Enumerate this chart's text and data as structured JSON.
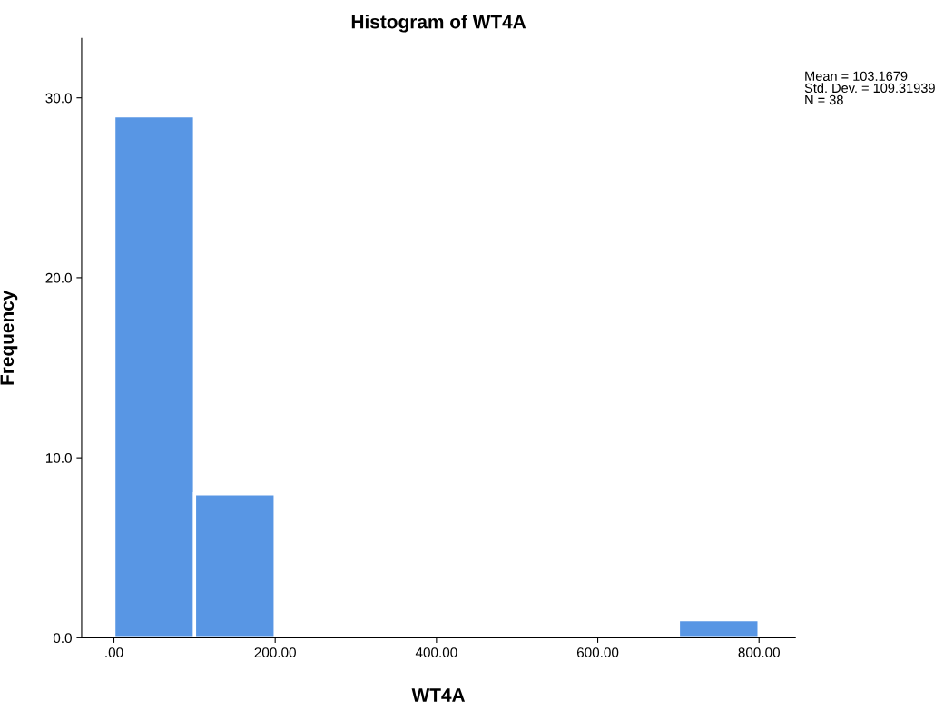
{
  "chart_data": {
    "type": "histogram",
    "title": "Histogram of WT4A",
    "xlabel": "WT4A",
    "ylabel": "Frequency",
    "bins": [
      0,
      100,
      200,
      300,
      400,
      500,
      600,
      700,
      800
    ],
    "values": [
      29,
      8,
      0,
      0,
      0,
      0,
      0,
      1
    ],
    "color": "#5896e4",
    "xlim": [
      -40,
      845
    ],
    "ylim": [
      0,
      33.3
    ],
    "xticks": [
      {
        "value": 0,
        "label": ".00"
      },
      {
        "value": 200,
        "label": "200.00"
      },
      {
        "value": 400,
        "label": "400.00"
      },
      {
        "value": 600,
        "label": "600.00"
      },
      {
        "value": 800,
        "label": "800.00"
      }
    ],
    "yticks": [
      {
        "value": 0,
        "label": "0.0"
      },
      {
        "value": 10,
        "label": "10.0"
      },
      {
        "value": 20,
        "label": "20.0"
      },
      {
        "value": 30,
        "label": "30.0"
      }
    ],
    "grid": false,
    "annotations": [
      "Mean = 103.1679\nStd. Dev. = 109.31939\nN = 38"
    ]
  }
}
